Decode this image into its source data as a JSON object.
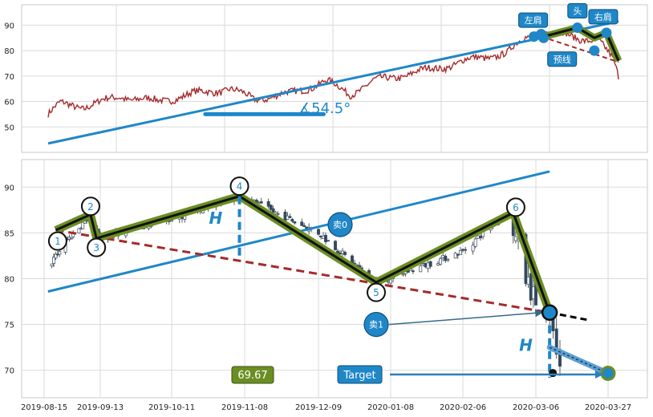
{
  "chart_data": [
    {
      "type": "line",
      "panel": "top",
      "ylim": [
        40,
        98
      ],
      "y_ticks": [
        50,
        60,
        70,
        80,
        90
      ],
      "grid": true,
      "series": [
        {
          "name": "",
          "color": "#a52a2a",
          "x_start": "2019-01-01",
          "x_end": "2020-03-27",
          "anchors": [
            [
              0,
              55
            ],
            [
              10,
              59
            ],
            [
              30,
              58
            ],
            [
              60,
              62
            ],
            [
              90,
              60
            ],
            [
              120,
              63
            ],
            [
              150,
              65
            ],
            [
              170,
              61
            ],
            [
              200,
              63
            ],
            [
              230,
              68
            ],
            [
              250,
              63
            ],
            [
              270,
              68
            ],
            [
              290,
              70
            ],
            [
              310,
              72
            ],
            [
              330,
              74
            ],
            [
              355,
              77
            ],
            [
              380,
              79
            ],
            [
              395,
              85
            ],
            [
              420,
              87
            ],
            [
              440,
              85
            ],
            [
              455,
              84
            ],
            [
              468,
              76
            ],
            [
              472,
              70
            ]
          ]
        }
      ],
      "trend_line": {
        "color": "#1f87c8",
        "from": [
          0,
          43.5
        ],
        "to": [
          472,
          91.5
        ]
      },
      "neckline": {
        "color": "#a52a2a",
        "style": "dashed",
        "from": [
          402,
          86.5
        ],
        "to": [
          472,
          75.5
        ]
      },
      "angle_bar": {
        "color": "#1f87c8",
        "from": [
          130,
          55
        ],
        "to": [
          228,
          55
        ]
      },
      "angle_text": "∡54.5°",
      "points": [
        {
          "label": "左肩",
          "x": 408,
          "y": 86
        },
        {
          "label": "头",
          "x": 438,
          "y": 89
        },
        {
          "label": "右肩",
          "x": 462,
          "y": 87
        },
        {
          "label": "预线",
          "x": 426,
          "y": 82
        }
      ]
    },
    {
      "type": "candlestick",
      "panel": "bottom",
      "ylim": [
        67,
        93
      ],
      "y_ticks": [
        70,
        75,
        80,
        85,
        90
      ],
      "x_ticks": [
        "2019-08-15",
        "2019-09-13",
        "2019-10-11",
        "2019-11-08",
        "2019-12-09",
        "2020-01-08",
        "2020-02-06",
        "2020-03-06",
        "2020-03-27"
      ],
      "grid": true,
      "price_path": [
        [
          "2019-08-18",
          81.5
        ],
        [
          "2019-08-26",
          84
        ],
        [
          "2019-09-06",
          86.5
        ],
        [
          "2019-09-13",
          84.5
        ],
        [
          "2019-10-11",
          86.5
        ],
        [
          "2019-11-06",
          89
        ],
        [
          "2019-12-09",
          85
        ],
        [
          "2020-01-02",
          79.5
        ],
        [
          "2020-02-06",
          83
        ],
        [
          "2020-02-24",
          87.5
        ],
        [
          "2020-03-02",
          80
        ],
        [
          "2020-03-10",
          75
        ],
        [
          "2020-03-13",
          70
        ]
      ],
      "pivots": [
        {
          "label": "1",
          "x": "2019-08-22",
          "y": 84.1
        },
        {
          "label": "2",
          "x": "2019-09-08",
          "y": 87.9
        },
        {
          "label": "3",
          "x": "2019-09-11",
          "y": 83.4
        },
        {
          "label": "4",
          "x": "2019-11-06",
          "y": 90.1
        },
        {
          "label": "5",
          "x": "2020-01-02",
          "y": 78.5
        },
        {
          "label": "6",
          "x": "2020-02-27",
          "y": 87.8
        },
        {
          "label": "",
          "x": "2020-03-10",
          "y": 76.3
        }
      ],
      "wave_path": [
        [
          "2019-08-21",
          85.3
        ],
        [
          "2019-09-08",
          87.0
        ],
        [
          "2019-09-11",
          84.4
        ],
        [
          "2019-11-06",
          89.0
        ],
        [
          "2020-01-02",
          79.6
        ],
        [
          "2020-02-26",
          87.2
        ],
        [
          "2020-03-10",
          76.3
        ]
      ],
      "trend_line": {
        "color": "#1f87c8",
        "from": [
          "2019-08-17",
          78.6
        ],
        "to": [
          "2020-03-10",
          91.7
        ]
      },
      "neckline": {
        "color": "#a52a2a",
        "style": "dashed",
        "from": [
          "2019-08-21",
          85.3
        ],
        "to": [
          "2020-03-10",
          76.3
        ]
      },
      "neck_ext": {
        "color": "#000000",
        "style": "dashed",
        "from": [
          "2020-03-10",
          76.3
        ],
        "to": [
          "2020-03-21",
          75.5
        ]
      },
      "h_lines": [
        {
          "label": "H",
          "x": "2019-11-06",
          "from": 89.0,
          "to": 82.3
        },
        {
          "label": "H",
          "x": "2020-03-10",
          "from": 76.3,
          "to": 69.2
        }
      ],
      "sell_markers": [
        {
          "label": "卖0",
          "x": "2019-12-18",
          "y": 85.9
        },
        {
          "label": "卖1",
          "x": "2020-01-02",
          "y": 75.0
        }
      ],
      "target": {
        "label": "Target",
        "value": "69.67",
        "x": "2020-03-27",
        "y": 69.67
      }
    }
  ]
}
